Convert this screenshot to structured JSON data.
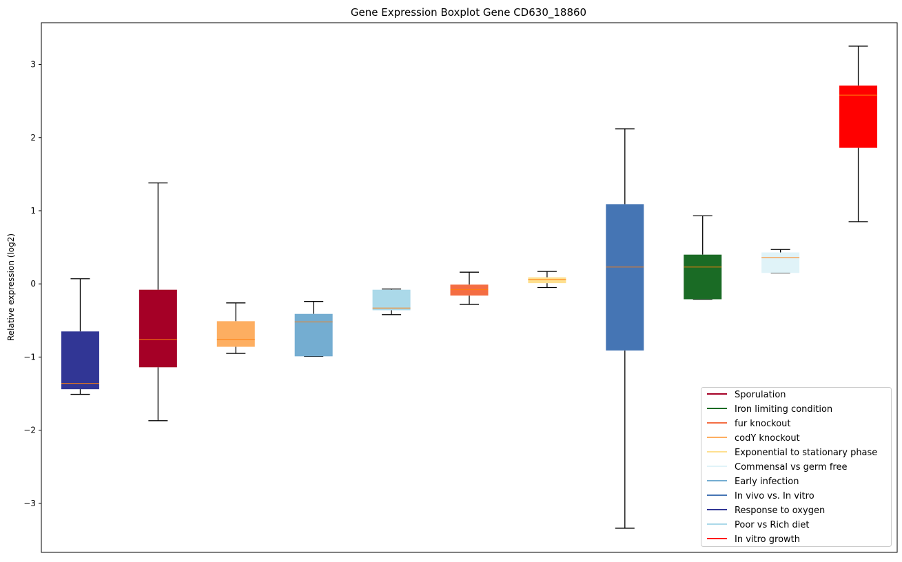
{
  "chart_data": {
    "type": "boxplot",
    "title": "Gene Expression Boxplot Gene CD630_18860",
    "xlabel": "",
    "ylabel": "Relative expression (log2)",
    "ylim": [
      -3.67,
      3.57
    ],
    "yticks": [
      3,
      2,
      1,
      0,
      -1,
      -2,
      -3
    ],
    "ytick_labels": [
      "3",
      "2",
      "1",
      "0",
      "−1",
      "−2",
      "−3"
    ],
    "grid": false,
    "legend_position": "lower-right",
    "boxes": [
      {
        "name": "Response to oxygen",
        "color": "#313695",
        "whislo": -1.51,
        "q1": -1.44,
        "med": -1.36,
        "q3": -0.65,
        "whishi": 0.07
      },
      {
        "name": "Sporulation",
        "color": "#a50026",
        "whislo": -1.87,
        "q1": -1.14,
        "med": -0.76,
        "q3": -0.08,
        "whishi": 1.38
      },
      {
        "name": "codY knockout",
        "color": "#fdae61",
        "whislo": -0.95,
        "q1": -0.86,
        "med": -0.76,
        "q3": -0.51,
        "whishi": -0.26
      },
      {
        "name": "Early infection",
        "color": "#74add1",
        "whislo": -0.99,
        "q1": -0.99,
        "med": -0.52,
        "q3": -0.41,
        "whishi": -0.24
      },
      {
        "name": "Poor vs Rich diet",
        "color": "#abd9e9",
        "whislo": -0.42,
        "q1": -0.36,
        "med": -0.33,
        "q3": -0.08,
        "whishi": -0.07
      },
      {
        "name": "fur knockout",
        "color": "#f46d43",
        "whislo": -0.28,
        "q1": -0.16,
        "med": -0.08,
        "q3": -0.01,
        "whishi": 0.16
      },
      {
        "name": "Exponential to stationary phase",
        "color": "#fee090",
        "whislo": -0.05,
        "q1": 0.01,
        "med": 0.06,
        "q3": 0.09,
        "whishi": 0.17
      },
      {
        "name": "In vivo vs. In vitro",
        "color": "#4575b4",
        "whislo": -3.34,
        "q1": -0.91,
        "med": 0.23,
        "q3": 1.09,
        "whishi": 2.12
      },
      {
        "name": "Iron limiting condition",
        "color": "#1a6b25",
        "whislo": -0.21,
        "q1": -0.21,
        "med": 0.23,
        "q3": 0.4,
        "whishi": 0.93
      },
      {
        "name": "Commensal vs germ free",
        "color": "#e0f3f8",
        "whislo": 0.15,
        "q1": 0.15,
        "med": 0.36,
        "q3": 0.43,
        "whishi": 0.47
      },
      {
        "name": "In vitro growth",
        "color": "#ff0000",
        "whislo": 0.85,
        "q1": 1.86,
        "med": 2.58,
        "q3": 2.71,
        "whishi": 3.25
      }
    ],
    "median_color": "#ff7f0e",
    "legend": [
      {
        "label": "Sporulation",
        "color": "#a50026"
      },
      {
        "label": "Iron limiting condition",
        "color": "#1a6b25"
      },
      {
        "label": "fur knockout",
        "color": "#f46d43"
      },
      {
        "label": "codY knockout",
        "color": "#fdae61"
      },
      {
        "label": "Exponential to stationary phase",
        "color": "#fee090"
      },
      {
        "label": "Commensal vs germ free",
        "color": "#e0f3f8"
      },
      {
        "label": "Early infection",
        "color": "#74add1"
      },
      {
        "label": "In vivo vs. In vitro",
        "color": "#4575b4"
      },
      {
        "label": "Response to oxygen",
        "color": "#313695"
      },
      {
        "label": "Poor vs Rich diet",
        "color": "#abd9e9"
      },
      {
        "label": "In vitro growth",
        "color": "#ff0000"
      }
    ]
  }
}
